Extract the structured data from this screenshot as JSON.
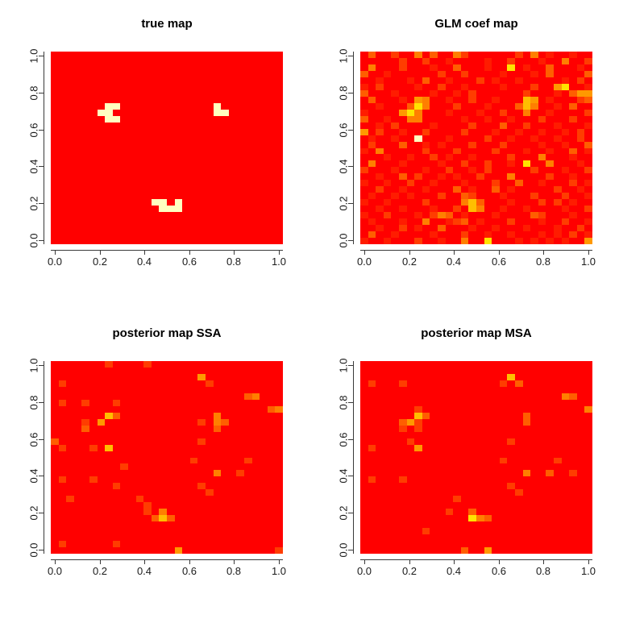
{
  "page": {
    "background": "#FFFFFF"
  },
  "palette": [
    "#FF0000",
    "#FF1C00",
    "#FF3D00",
    "#FF5E00",
    "#FF7F00",
    "#FF9900",
    "#FFBE00",
    "#FFE300",
    "#FFFF6B",
    "#FFFFC0"
  ],
  "axis_style": {
    "tick_color": "#3a3a3a",
    "label_color": "#1a1a1a"
  },
  "chart_data": [
    {
      "type": "heatmap",
      "title": "true map",
      "xlabel": "",
      "ylabel": "",
      "xlim": [
        0,
        1
      ],
      "ylim": [
        0,
        1
      ],
      "x_ticks": [
        "0.0",
        "0.2",
        "0.4",
        "0.6",
        "0.8",
        "1.0"
      ],
      "y_ticks": [
        "0.0",
        "0.2",
        "0.4",
        "0.6",
        "0.8",
        "1.0"
      ],
      "n_cols": 30,
      "n_rows": 30,
      "rows_order": "top_to_bottom",
      "value_scale": "digits 0-9 index into palette; 0=low(red), 9=high(pale yellow)",
      "rows": [
        "000000000000000000000000000000",
        "000000000000000000000000000000",
        "000000000000000000000000000000",
        "000000000000000000000000000000",
        "000000000000000000000000000000",
        "000000000000000000000000000000",
        "000000000000000000000000000000",
        "000000000000000000000000000000",
        "000000099000000000000900000000",
        "000000990000000000000990000000",
        "000000099000000000000000000000",
        "000000000000000000000000000000",
        "000000000000000000000000000000",
        "000000000000000000000000000000",
        "000000000000000000000000000000",
        "000000000000000000000000000000",
        "000000000000000000000000000000",
        "000000000000000000000000000000",
        "000000000000000000000000000000",
        "000000000000000000000000000000",
        "000000000000000000000000000000",
        "000000000000000000000000000000",
        "000000000000000000000000000000",
        "000000000000099090000000000000",
        "000000000000009990000000000000",
        "000000000000000000000000000000",
        "000000000000000000000000000000",
        "000000000000000000000000000000",
        "000000000000000000000000000000",
        "000000000000000000000000000000"
      ]
    },
    {
      "type": "heatmap",
      "title": "GLM coef map",
      "xlabel": "",
      "ylabel": "",
      "xlim": [
        0,
        1
      ],
      "ylim": [
        0,
        1
      ],
      "x_ticks": [
        "0.0",
        "0.2",
        "0.4",
        "0.6",
        "0.8",
        "1.0"
      ],
      "y_ticks": [
        "0.0",
        "0.2",
        "0.4",
        "0.6",
        "0.8",
        "1.0"
      ],
      "n_cols": 30,
      "n_rows": 30,
      "rows_order": "top_to_bottom",
      "value_scale": "digits 0-9 index into palette; 0=low(red), 9=high(pale yellow)",
      "rows": [
        "030020040300420000002040100100",
        "000002002001000010020001004002",
        "040002000100300010070100300010",
        "300100000020020000100010300003",
        "001000103001000201001000001020",
        "102000010020010000100020057001",
        "300010000100102000000200010355",
        "030001054001002001000650100023",
        "001000374000200010003640010300",
        "100005740001000100200400100002",
        "300100440000010010010002000200",
        "001020000100002000300200010001",
        "502001002000020001001001001020",
        "010010090001000020010010010020",
        "020003001010002000200001001003",
        "104000002000200002000100100301",
        "000100100201001000020004000100",
        "040001000010020020010700400010",
        "200010001002001020000020001002",
        "001003020010100200040000200100",
        "100100200100010002003001000201",
        "002001001000301003010000020010",
        "010010100020032000100020002001",
        "100100002000046300010002020100",
        "001001000100206400100100001002",
        "100200010243010001000032000100",
        "010001004001230100020001002001",
        "001002010030001001000100010020",
        "030010000100020010010001010201",
        "100100020010040070001010101005"
      ]
    },
    {
      "type": "heatmap",
      "title": "posterior map SSA",
      "xlabel": "",
      "ylabel": "",
      "xlim": [
        0,
        1
      ],
      "ylim": [
        0,
        1
      ],
      "x_ticks": [
        "0.0",
        "0.2",
        "0.4",
        "0.6",
        "0.8",
        "1.0"
      ],
      "y_ticks": [
        "0.0",
        "0.2",
        "0.4",
        "0.6",
        "0.8",
        "1.0"
      ],
      "n_cols": 30,
      "n_rows": 30,
      "rows_order": "top_to_bottom",
      "value_scale": "digits 0-9 index into palette; 0=low(red), 9=high(pale yellow)",
      "rows": [
        "000000020000200000000000000000",
        "000000000000000000000000000000",
        "000000000000000000050000000000",
        "020000000000000000002000000000",
        "000000000000000000000000000000",
        "000000000000000000000000034000",
        "020020002000000000000000000000",
        "000000000000000000000000000034",
        "000000063000000000000400000000",
        "000020500000000000020430000000",
        "000030000000000000000300000000",
        "000000000000000000000000000000",
        "300000000000000000020000000000",
        "020002060000000000000000000000",
        "000000000000000000000000000000",
        "000000000000000000200000020000",
        "000000000200000000000000000000",
        "000000000000000000000400200000",
        "020002000000000000000000000000",
        "000000002000000000020000000000",
        "000000000000000000002000000000",
        "002000000002000000000000000000",
        "000000000000200000000000000000",
        "000000000000204000000000000000",
        "000000000000036300000000000000",
        "000000000000000000000000000000",
        "000000000000000000000000000000",
        "000000000000000000000000000000",
        "020000002000000000000000000000",
        "000000000000000050000000000002"
      ]
    },
    {
      "type": "heatmap",
      "title": "posterior map MSA",
      "xlabel": "",
      "ylabel": "",
      "xlim": [
        0,
        1
      ],
      "ylim": [
        0,
        1
      ],
      "x_ticks": [
        "0.0",
        "0.2",
        "0.4",
        "0.6",
        "0.8",
        "1.0"
      ],
      "y_ticks": [
        "0.0",
        "0.2",
        "0.4",
        "0.6",
        "0.8",
        "1.0"
      ],
      "n_cols": 30,
      "n_rows": 30,
      "rows_order": "top_to_bottom",
      "value_scale": "digits 0-9 index into palette; 0=low(red), 9=high(pale yellow)",
      "rows": [
        "000000000000000000000000000000",
        "000000000000000000000000000000",
        "000000000000000000060000000000",
        "020002000000000000203000000000",
        "000000000000000000000000000000",
        "000000000000000000000000004300",
        "000000000000000000000000000000",
        "000000020000000000000000000004",
        "000000063000000000000300000000",
        "000003520000000000000300000000",
        "000002020000000000000000000000",
        "000000000000000000000000000000",
        "000000200000000000020000000000",
        "020000050000000000000000000000",
        "000000000000000000000000000000",
        "000000000000000000200000020000",
        "000000000000000000000000000000",
        "000000000000000000000400300200",
        "020002000000000000000000000000",
        "000000000000000000020000000000",
        "000000000000000000002000000000",
        "000000000000200000000000000000",
        "000000000000000000000000000000",
        "000000000002003000000000000000",
        "000000000000007430000000000000",
        "000000000000000000000000000000",
        "000000002000000000000000000000",
        "000000000000000000000000000000",
        "000000000000000000000000000000",
        "000000000000030050000000000000"
      ]
    }
  ]
}
